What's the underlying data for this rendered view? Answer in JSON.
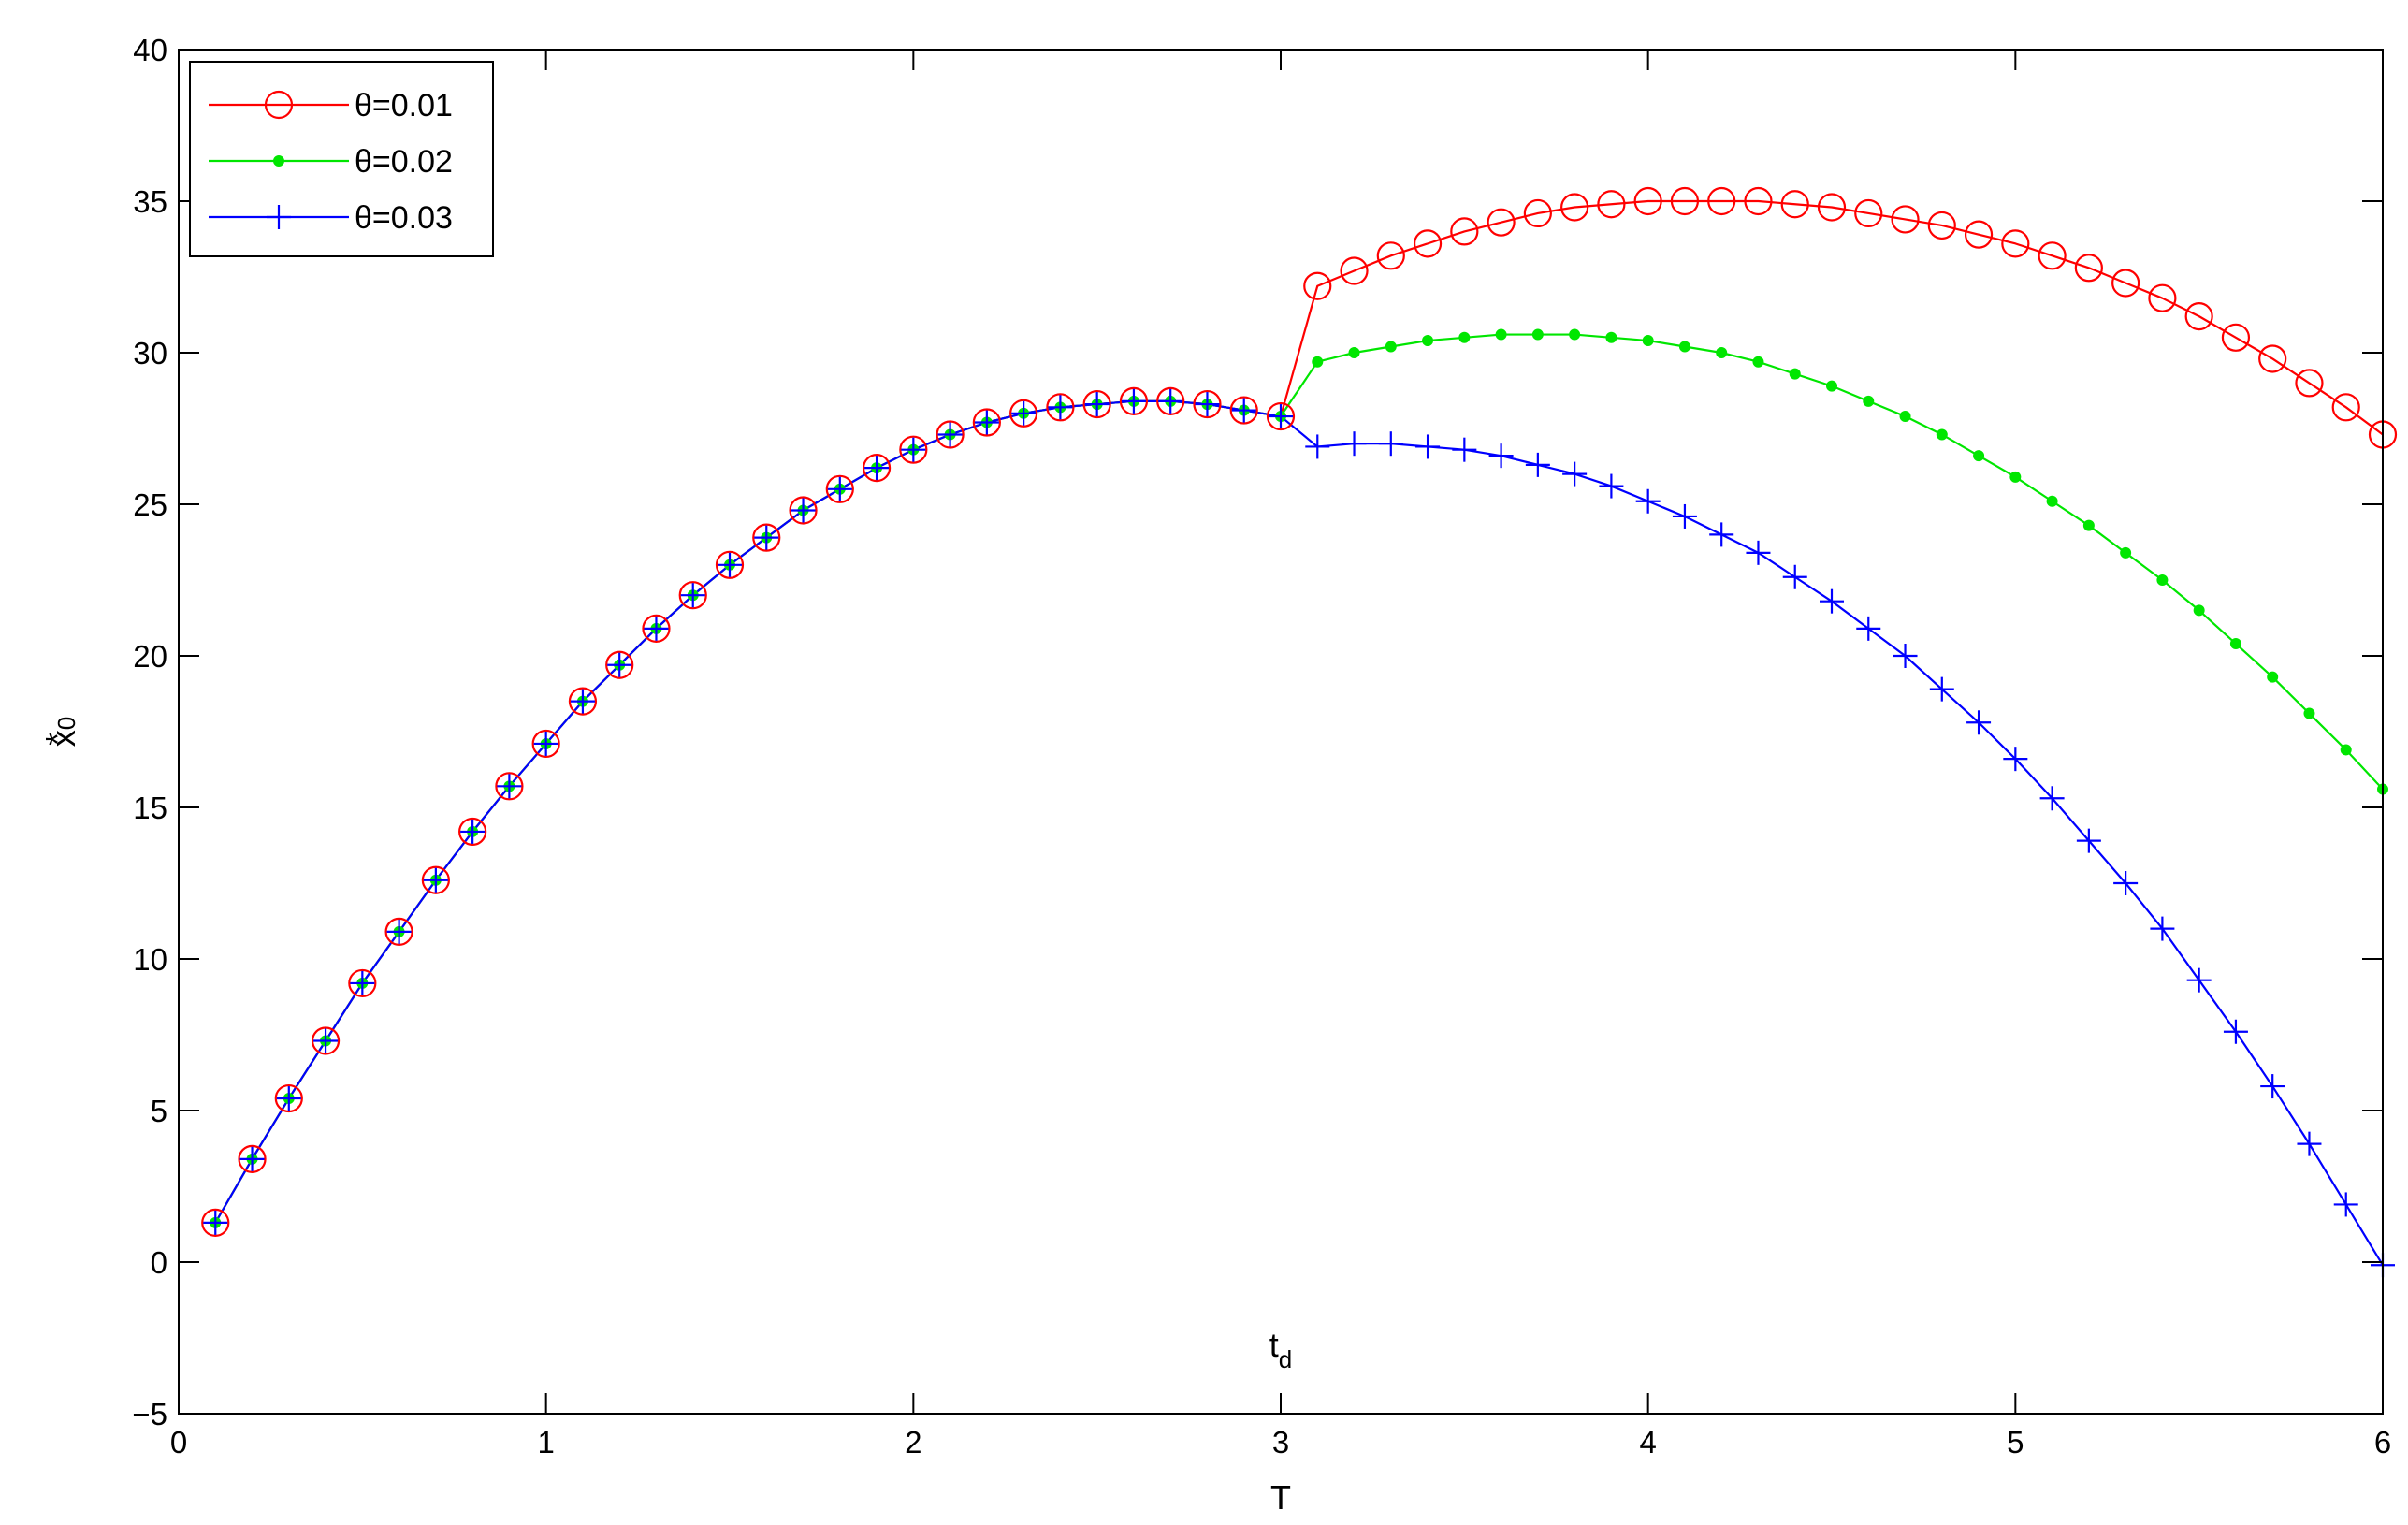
{
  "chart_data": {
    "type": "line",
    "title": "",
    "xlabel": "T",
    "ylabel": "x",
    "ylabel_superscript": "*",
    "ylabel_subscript": "0",
    "xlim": [
      0,
      6
    ],
    "ylim": [
      -5,
      40
    ],
    "xticks": [
      0,
      1,
      2,
      3,
      4,
      5,
      6
    ],
    "yticks": [
      -5,
      0,
      5,
      10,
      15,
      20,
      25,
      30,
      35,
      40
    ],
    "grid": false,
    "legend_position": "top-left",
    "annotation": {
      "text": "t",
      "subscript": "d",
      "x": 3.0
    },
    "x": [
      0.1,
      0.2,
      0.3,
      0.4,
      0.5,
      0.6,
      0.7,
      0.8,
      0.9,
      1.0,
      1.1,
      1.2,
      1.3,
      1.4,
      1.5,
      1.6,
      1.7,
      1.8,
      1.9,
      2.0,
      2.1,
      2.2,
      2.3,
      2.4,
      2.5,
      2.6,
      2.7,
      2.8,
      2.9,
      3.0,
      3.1,
      3.2,
      3.3,
      3.4,
      3.5,
      3.6,
      3.7,
      3.8,
      3.9,
      4.0,
      4.1,
      4.2,
      4.3,
      4.4,
      4.5,
      4.6,
      4.7,
      4.8,
      4.9,
      5.0,
      5.1,
      5.2,
      5.3,
      5.4,
      5.5,
      5.6,
      5.7,
      5.8,
      5.9,
      6.0
    ],
    "series": [
      {
        "name": "θ=0.01",
        "color": "#ff0000",
        "marker": "circle",
        "values": [
          1.3,
          3.4,
          5.4,
          7.3,
          9.2,
          10.9,
          12.6,
          14.2,
          15.7,
          17.1,
          18.5,
          19.7,
          20.9,
          22.0,
          23.0,
          23.9,
          24.8,
          25.5,
          26.2,
          26.8,
          27.3,
          27.7,
          28.0,
          28.2,
          28.3,
          28.4,
          28.4,
          28.3,
          28.1,
          27.9,
          32.2,
          32.7,
          33.2,
          33.6,
          34.0,
          34.3,
          34.6,
          34.8,
          34.9,
          35.0,
          35.0,
          35.0,
          35.0,
          34.9,
          34.8,
          34.6,
          34.4,
          34.2,
          33.9,
          33.6,
          33.2,
          32.8,
          32.3,
          31.8,
          31.2,
          30.5,
          29.8,
          29.0,
          28.2,
          27.3
        ]
      },
      {
        "name": "θ=0.02",
        "color": "#00e600",
        "marker": "dot",
        "values": [
          1.3,
          3.4,
          5.4,
          7.3,
          9.2,
          10.9,
          12.6,
          14.2,
          15.7,
          17.1,
          18.5,
          19.7,
          20.9,
          22.0,
          23.0,
          23.9,
          24.8,
          25.5,
          26.2,
          26.8,
          27.3,
          27.7,
          28.0,
          28.2,
          28.3,
          28.4,
          28.4,
          28.3,
          28.1,
          27.9,
          29.7,
          30.0,
          30.2,
          30.4,
          30.5,
          30.6,
          30.6,
          30.6,
          30.5,
          30.4,
          30.2,
          30.0,
          29.7,
          29.3,
          28.9,
          28.4,
          27.9,
          27.3,
          26.6,
          25.9,
          25.1,
          24.3,
          23.4,
          22.5,
          21.5,
          20.4,
          19.3,
          18.1,
          16.9,
          15.6
        ]
      },
      {
        "name": "θ=0.03",
        "color": "#0000ff",
        "marker": "plus",
        "values": [
          1.3,
          3.4,
          5.4,
          7.3,
          9.2,
          10.9,
          12.6,
          14.2,
          15.7,
          17.1,
          18.5,
          19.7,
          20.9,
          22.0,
          23.0,
          23.9,
          24.8,
          25.5,
          26.2,
          26.8,
          27.3,
          27.7,
          28.0,
          28.2,
          28.3,
          28.4,
          28.4,
          28.3,
          28.1,
          27.9,
          26.9,
          27.0,
          27.0,
          26.9,
          26.8,
          26.6,
          26.3,
          26.0,
          25.6,
          25.1,
          24.6,
          24.0,
          23.4,
          22.6,
          21.8,
          20.9,
          20.0,
          18.9,
          17.8,
          16.6,
          15.3,
          13.9,
          12.5,
          11.0,
          9.3,
          7.6,
          5.8,
          3.9,
          1.9,
          -0.1
        ]
      }
    ]
  }
}
